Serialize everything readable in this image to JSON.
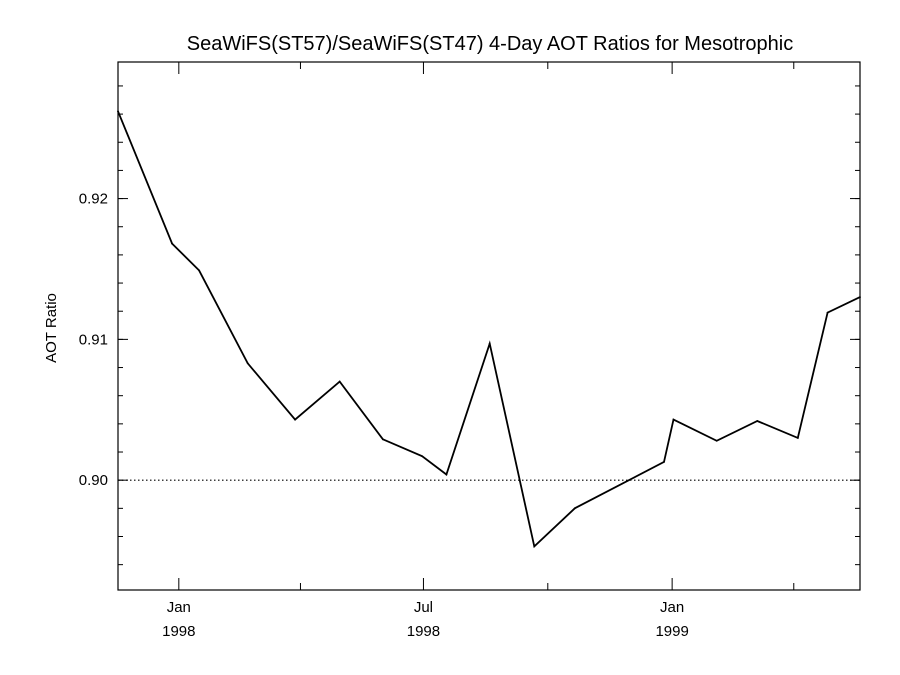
{
  "chart_data": {
    "type": "line",
    "title": "SeaWiFS(ST57)/SeaWiFS(ST47) 4-Day AOT Ratios for Mesotrophic",
    "xlabel": "",
    "ylabel": "AOT Ratio",
    "xlim": [
      "1997-11-17",
      "1999-05-20"
    ],
    "ylim": [
      0.8922,
      0.9297
    ],
    "y_ticks": [
      {
        "value": 0.9,
        "label": "0.90"
      },
      {
        "value": 0.91,
        "label": "0.91"
      },
      {
        "value": 0.92,
        "label": "0.92"
      }
    ],
    "y_minor_step": 0.002,
    "x_major_ticks": [
      {
        "date": "1998-01-01",
        "label": "Jan",
        "sublabel": "1998"
      },
      {
        "date": "1998-07-01",
        "label": "Jul",
        "sublabel": "1998"
      },
      {
        "date": "1999-01-01",
        "label": "Jan",
        "sublabel": "1999"
      }
    ],
    "x_minor_ticks": [
      "1998-04-01",
      "1998-10-01",
      "1999-04-01"
    ],
    "reference_line": {
      "y": 0.9,
      "style": "dotted"
    },
    "grid": false,
    "series": [
      {
        "color": "#000000",
        "points": [
          {
            "x": "1997-11-17",
            "y": 0.9262
          },
          {
            "x": "1997-12-27",
            "y": 0.9168
          },
          {
            "x": "1998-01-16",
            "y": 0.9149
          },
          {
            "x": "1998-02-21",
            "y": 0.9083
          },
          {
            "x": "1998-03-28",
            "y": 0.9043
          },
          {
            "x": "1998-04-30",
            "y": 0.907
          },
          {
            "x": "1998-06-01",
            "y": 0.9029
          },
          {
            "x": "1998-06-30",
            "y": 0.9017
          },
          {
            "x": "1998-07-18",
            "y": 0.9004
          },
          {
            "x": "1998-08-19",
            "y": 0.9097
          },
          {
            "x": "1998-09-21",
            "y": 0.8953
          },
          {
            "x": "1998-10-21",
            "y": 0.898
          },
          {
            "x": "1998-12-26",
            "y": 0.9013
          },
          {
            "x": "1999-01-02",
            "y": 0.9043
          },
          {
            "x": "1999-02-03",
            "y": 0.9028
          },
          {
            "x": "1999-03-05",
            "y": 0.9042
          },
          {
            "x": "1999-04-04",
            "y": 0.903
          },
          {
            "x": "1999-04-26",
            "y": 0.9119
          },
          {
            "x": "1999-05-20",
            "y": 0.913
          }
        ]
      }
    ]
  }
}
